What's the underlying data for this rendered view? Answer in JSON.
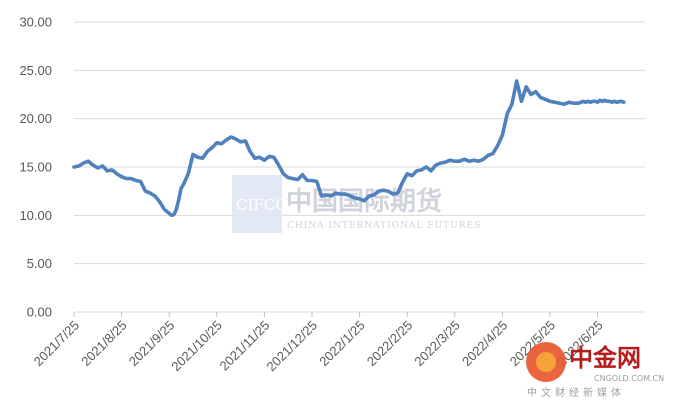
{
  "chart_data": {
    "type": "line",
    "title": "",
    "xlabel": "",
    "ylabel": "",
    "ylim": [
      0,
      30
    ],
    "yticks": [
      "0.00",
      "5.00",
      "10.00",
      "15.00",
      "20.00",
      "25.00",
      "30.00"
    ],
    "categories": [
      "2021/7/25",
      "2021/8/25",
      "2021/9/25",
      "2021/10/25",
      "2021/11/25",
      "2021/12/25",
      "2022/1/25",
      "2022/2/25",
      "2022/3/25",
      "2022/4/25",
      "2022/5/25",
      "2022/6/25"
    ],
    "grid": true,
    "legend": "none",
    "color": "#4f81bd",
    "series": [
      {
        "x": [
          0,
          0.1,
          0.2,
          0.3,
          0.4,
          0.5,
          0.6,
          0.7,
          0.8,
          0.9,
          1.0,
          1.1,
          1.2,
          1.3,
          1.4,
          1.5,
          1.6,
          1.7,
          1.75,
          1.8,
          1.85,
          1.9,
          2.0,
          2.05,
          2.1,
          2.15,
          2.2,
          2.25,
          2.3,
          2.4,
          2.5,
          2.6,
          2.7,
          2.8,
          2.9,
          3.0,
          3.1,
          3.2,
          3.3,
          3.4,
          3.5,
          3.6,
          3.7,
          3.8,
          3.9,
          4.0,
          4.1,
          4.2,
          4.3,
          4.4,
          4.5,
          4.6,
          4.7,
          4.8,
          4.9,
          5.0,
          5.1,
          5.2,
          5.3,
          5.4,
          5.5,
          5.6,
          5.7,
          5.8,
          5.9,
          6.0,
          6.1,
          6.2,
          6.3,
          6.4,
          6.5,
          6.6,
          6.7,
          6.8,
          6.9,
          7.0,
          7.1,
          7.2,
          7.3,
          7.4,
          7.5,
          7.6,
          7.7,
          7.8,
          7.9,
          8.0,
          8.1,
          8.2,
          8.3,
          8.4,
          8.5,
          8.6,
          8.7,
          8.8,
          8.9,
          9.0,
          9.1,
          9.2,
          9.3,
          9.4,
          9.5,
          9.6,
          9.7,
          9.8,
          9.9,
          10.0,
          10.1,
          10.2,
          10.3,
          10.4,
          10.5,
          10.6,
          10.7,
          10.75,
          10.8,
          10.85,
          10.9,
          10.95,
          11.0,
          11.05,
          11.1,
          11.15,
          11.2,
          11.25,
          11.3,
          11.35,
          11.4,
          11.5,
          11.55
        ],
        "values": [
          15.0,
          15.1,
          15.4,
          15.6,
          15.2,
          14.9,
          15.1,
          14.6,
          14.7,
          14.3,
          14.0,
          13.8,
          13.8,
          13.6,
          13.5,
          12.5,
          12.3,
          12.0,
          11.7,
          11.4,
          11.0,
          10.6,
          10.2,
          10.0,
          10.1,
          10.6,
          11.6,
          12.8,
          13.2,
          14.3,
          16.3,
          16.0,
          15.9,
          16.6,
          17.0,
          17.5,
          17.4,
          17.8,
          18.1,
          17.9,
          17.6,
          17.7,
          16.6,
          15.9,
          16.0,
          15.7,
          16.1,
          16.0,
          15.2,
          14.3,
          13.9,
          13.8,
          13.7,
          14.2,
          13.6,
          13.6,
          13.5,
          12.0,
          12.1,
          12.0,
          12.3,
          12.2,
          12.2,
          12.0,
          11.8,
          11.7,
          11.5,
          12.0,
          12.1,
          12.5,
          12.6,
          12.5,
          12.2,
          12.3,
          13.4,
          14.3,
          14.1,
          14.6,
          14.7,
          15.0,
          14.6,
          15.2,
          15.4,
          15.5,
          15.7,
          15.6,
          15.6,
          15.8,
          15.6,
          15.7,
          15.6,
          15.8,
          16.2,
          16.4,
          17.2,
          18.3,
          20.5,
          21.5,
          23.9,
          21.8,
          23.3,
          22.5,
          22.8,
          22.2,
          22.0,
          21.8,
          21.7,
          21.6,
          21.5,
          21.7,
          21.6,
          21.6,
          21.8,
          21.7,
          21.8,
          21.7,
          21.8,
          21.8,
          21.7,
          21.9,
          21.8,
          21.9,
          21.8,
          21.8,
          21.7,
          21.8,
          21.7,
          21.8,
          21.7
        ]
      }
    ]
  },
  "watermarks": {
    "cifco_logo": "CIFCO",
    "cifco_cn": "中国国际期货",
    "cifco_en": "CHINA INTERNATIONAL FUTURES",
    "cngold_cn": "中金网",
    "cngold_url": "CNGOLD.COM.CN",
    "cngold_sub": "中文财经新媒体"
  }
}
